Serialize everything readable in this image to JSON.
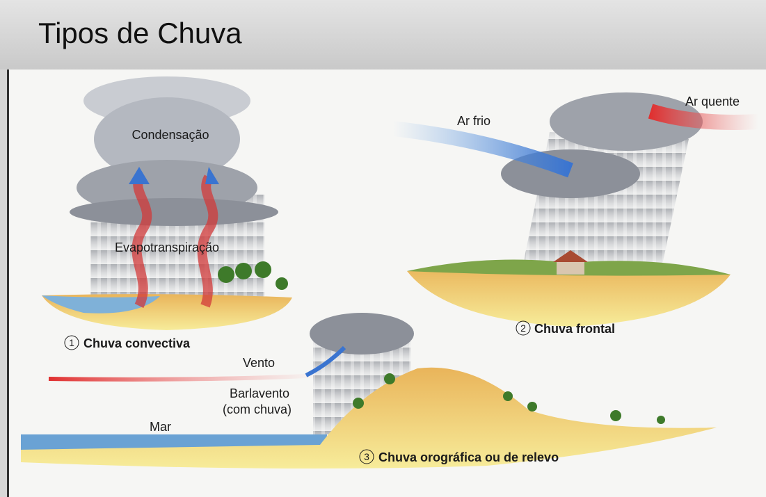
{
  "header": {
    "title": "Tipos de Chuva"
  },
  "panels": [
    {
      "number": 1,
      "label": "Chuva convectiva",
      "annotations": [
        "Condensação",
        "Evapotranspiração"
      ]
    },
    {
      "number": 2,
      "label": "Chuva frontal",
      "annotations": [
        "Ar frio",
        "Ar quente"
      ]
    },
    {
      "number": 3,
      "label": "Chuva orográfica ou de relevo",
      "annotations": [
        "Vento",
        "Barlavento",
        "(com chuva)",
        "Mar"
      ]
    }
  ]
}
